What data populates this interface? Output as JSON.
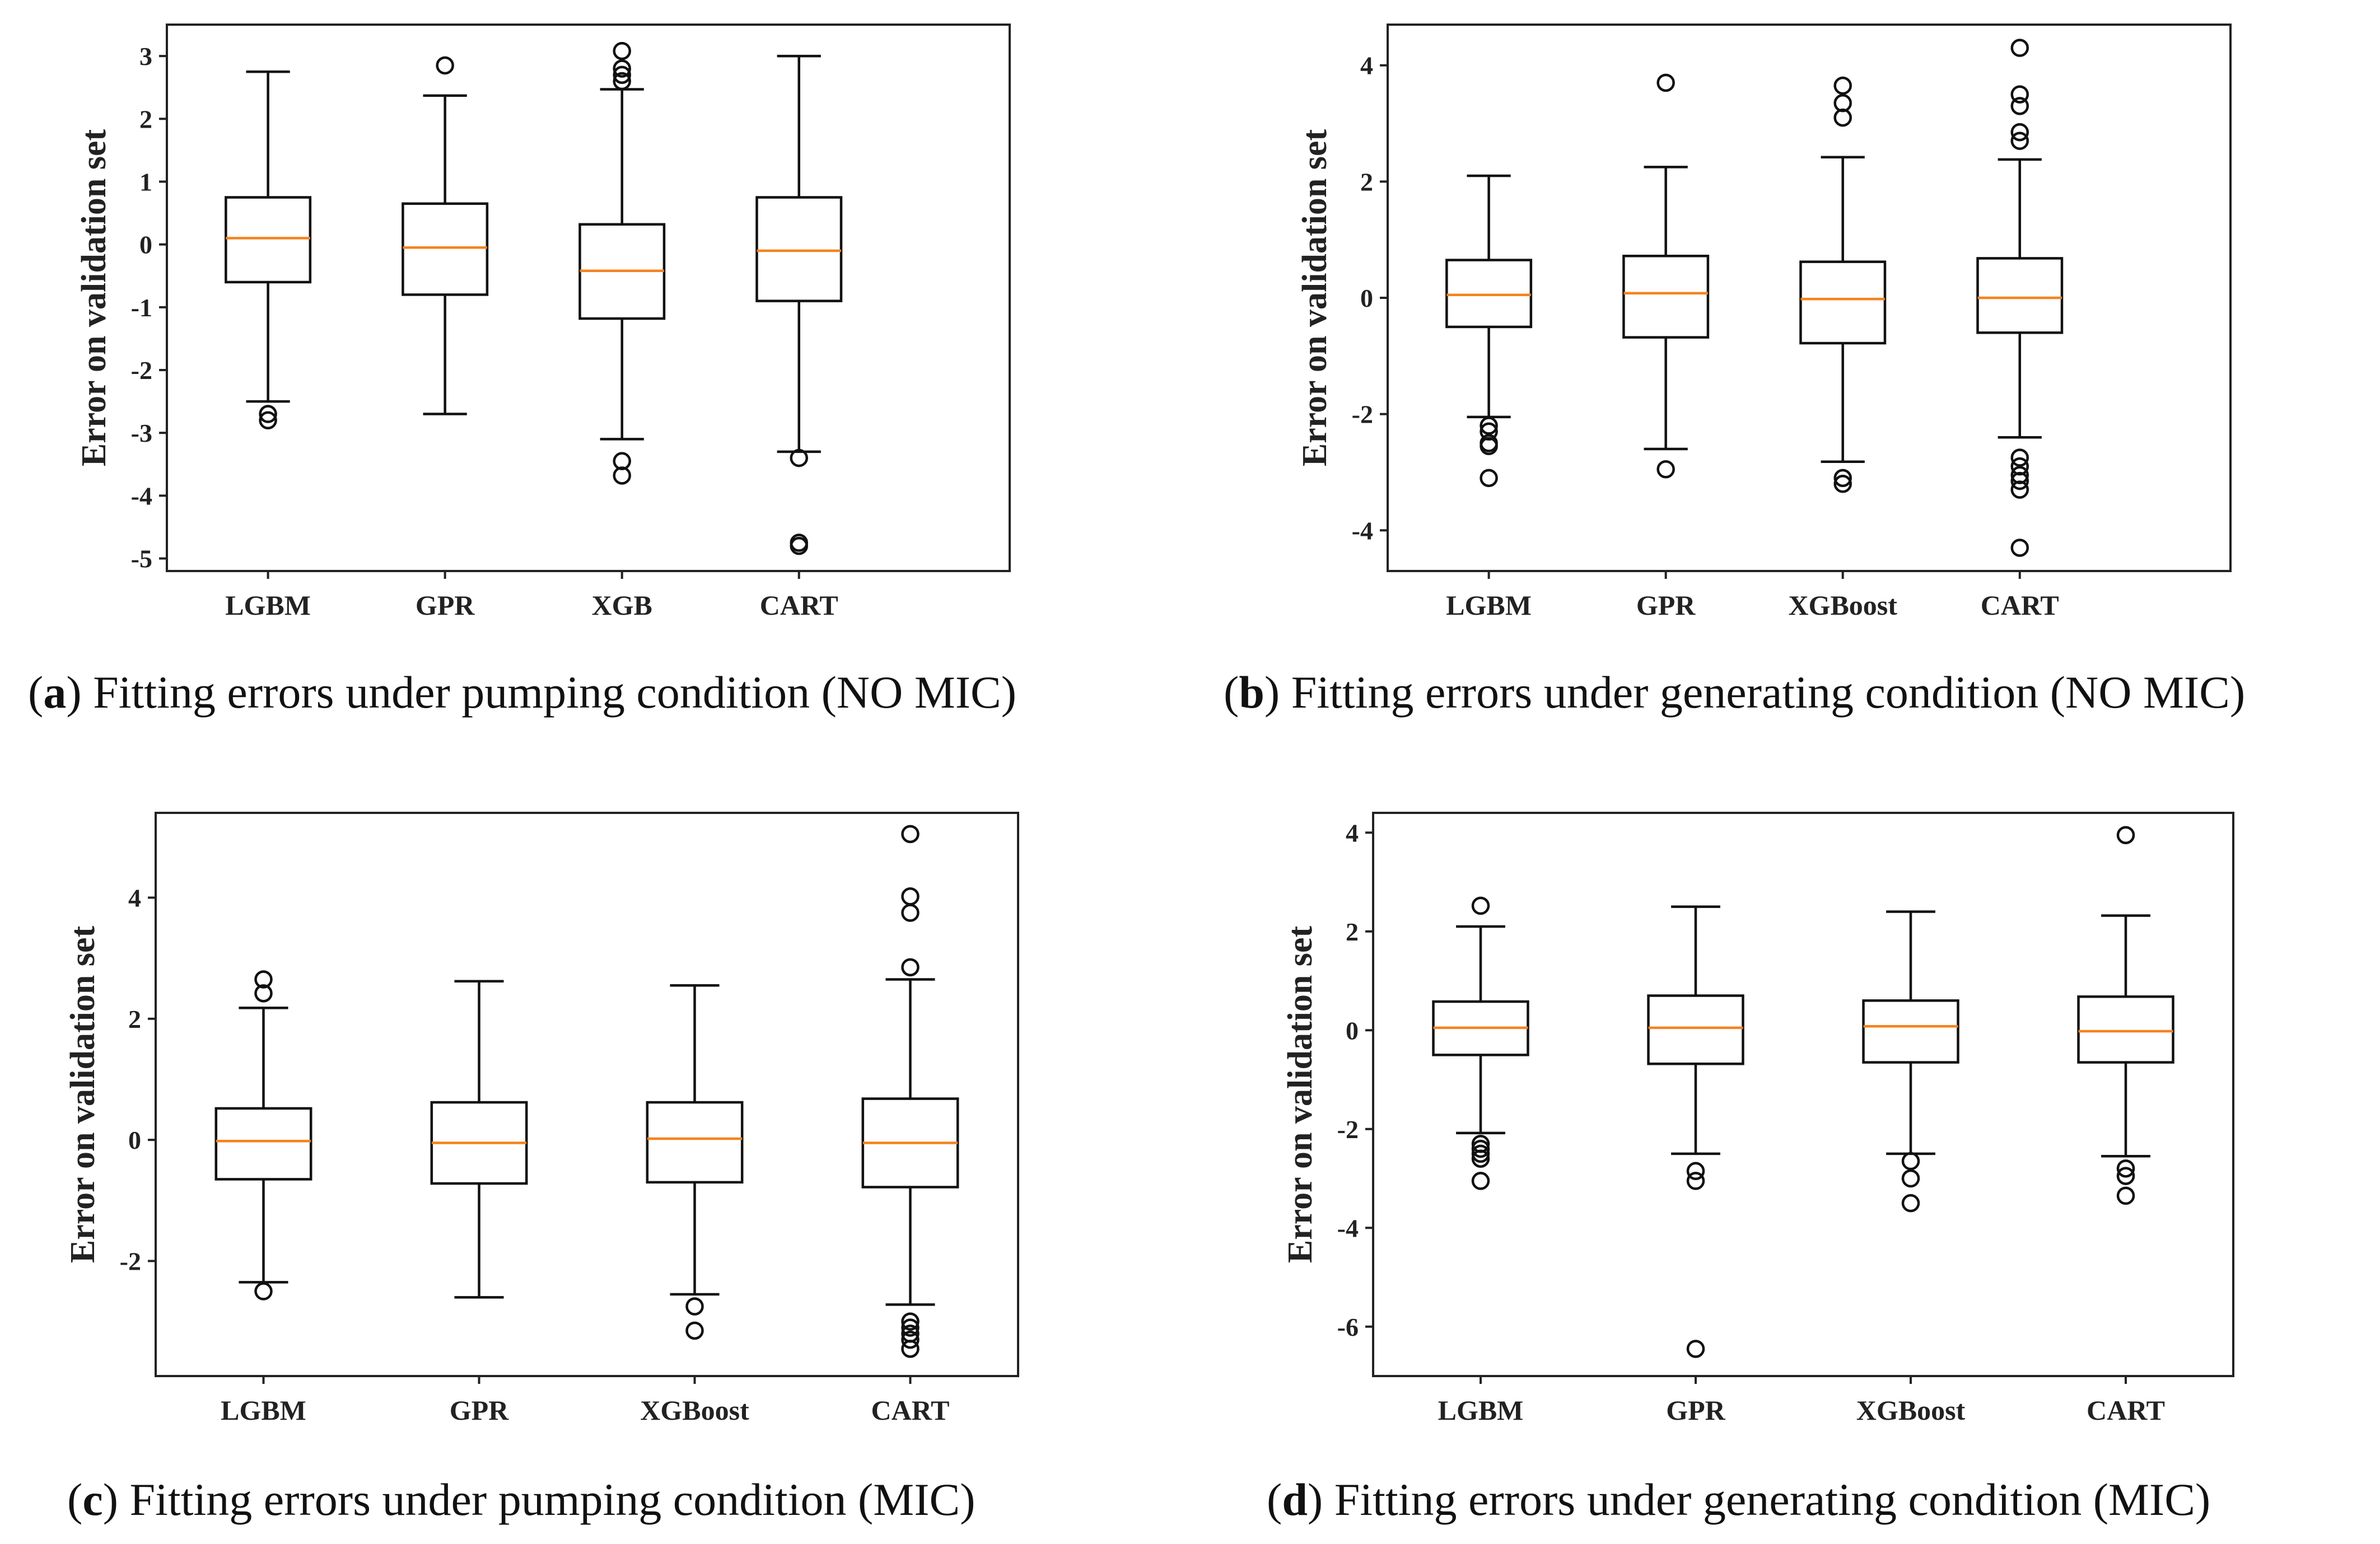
{
  "chart_data": [
    {
      "type": "box",
      "panel_tag": "a",
      "caption": "Fitting errors under pumping condition (NO MIC)",
      "ylabel": "Error on validation set",
      "xlabel": "",
      "ylim": [
        -5.2,
        3.5
      ],
      "yticks": [
        3,
        2,
        1,
        0,
        -1,
        -2,
        -3,
        -4,
        -5
      ],
      "categories": [
        "LGBM",
        "GPR",
        "XGB",
        "CART"
      ],
      "boxes": [
        {
          "q1": -0.6,
          "median": 0.1,
          "q3": 0.75,
          "whislo": -2.5,
          "whishi": 2.75,
          "fliers": [
            -2.7,
            -2.8
          ]
        },
        {
          "q1": -0.8,
          "median": -0.05,
          "q3": 0.65,
          "whislo": -2.7,
          "whishi": 2.37,
          "fliers": [
            2.85
          ]
        },
        {
          "q1": -1.18,
          "median": -0.42,
          "q3": 0.32,
          "whislo": -3.1,
          "whishi": 2.47,
          "fliers": [
            2.6,
            2.7,
            2.8,
            3.08,
            -3.45,
            -3.68
          ]
        },
        {
          "q1": -0.9,
          "median": -0.1,
          "q3": 0.75,
          "whislo": -3.3,
          "whishi": 3.0,
          "fliers": [
            -3.4,
            -4.75,
            -4.8
          ]
        }
      ]
    },
    {
      "type": "box",
      "panel_tag": "b",
      "caption": "Fitting errors under generating condition (NO MIC)",
      "ylabel": "Error on validation set",
      "xlabel": "",
      "ylim": [
        -4.7,
        4.7
      ],
      "yticks": [
        4,
        2,
        0,
        -2,
        -4
      ],
      "categories": [
        "LGBM",
        "GPR",
        "XGBoost",
        "CART"
      ],
      "boxes": [
        {
          "q1": -0.5,
          "median": 0.05,
          "q3": 0.65,
          "whislo": -2.05,
          "whishi": 2.1,
          "fliers": [
            -2.2,
            -2.3,
            -2.5,
            -2.55,
            -3.1
          ]
        },
        {
          "q1": -0.68,
          "median": 0.08,
          "q3": 0.72,
          "whislo": -2.6,
          "whishi": 2.25,
          "fliers": [
            3.7,
            -2.95
          ]
        },
        {
          "q1": -0.78,
          "median": -0.02,
          "q3": 0.62,
          "whislo": -2.82,
          "whishi": 2.42,
          "fliers": [
            3.1,
            3.35,
            3.65,
            -3.1,
            -3.2
          ]
        },
        {
          "q1": -0.6,
          "median": 0.0,
          "q3": 0.68,
          "whislo": -2.4,
          "whishi": 2.38,
          "fliers": [
            2.7,
            2.85,
            3.3,
            3.5,
            4.3,
            -2.75,
            -2.9,
            -3.05,
            -3.15,
            -3.3,
            -4.3
          ]
        }
      ]
    },
    {
      "type": "box",
      "panel_tag": "c",
      "caption": "Fitting errors under pumping condition (MIC)",
      "ylabel": "Error on validation set",
      "xlabel": "",
      "ylim": [
        -3.9,
        5.4
      ],
      "yticks": [
        4,
        2,
        0,
        -2
      ],
      "categories": [
        "LGBM",
        "GPR",
        "XGBoost",
        "CART"
      ],
      "boxes": [
        {
          "q1": -0.65,
          "median": -0.02,
          "q3": 0.52,
          "whislo": -2.35,
          "whishi": 2.18,
          "fliers": [
            2.42,
            2.65,
            -2.5
          ]
        },
        {
          "q1": -0.72,
          "median": -0.05,
          "q3": 0.62,
          "whislo": -2.6,
          "whishi": 2.62,
          "fliers": []
        },
        {
          "q1": -0.7,
          "median": 0.02,
          "q3": 0.62,
          "whislo": -2.55,
          "whishi": 2.55,
          "fliers": [
            -2.75,
            -3.15
          ]
        },
        {
          "q1": -0.78,
          "median": -0.05,
          "q3": 0.68,
          "whislo": -2.72,
          "whishi": 2.65,
          "fliers": [
            2.85,
            3.75,
            4.02,
            5.05,
            -3.0,
            -3.1,
            -3.2,
            -3.3,
            -3.45
          ]
        }
      ]
    },
    {
      "type": "box",
      "panel_tag": "d",
      "caption": "Fitting errors under generating condition (MIC)",
      "ylabel": "Error on validation set",
      "xlabel": "",
      "ylim": [
        -7.0,
        4.4
      ],
      "yticks": [
        4,
        2,
        0,
        -2,
        -4,
        -6
      ],
      "categories": [
        "LGBM",
        "GPR",
        "XGBoost",
        "CART"
      ],
      "boxes": [
        {
          "q1": -0.5,
          "median": 0.05,
          "q3": 0.58,
          "whislo": -2.08,
          "whishi": 2.1,
          "fliers": [
            2.52,
            -2.3,
            -2.4,
            -2.5,
            -2.6,
            -3.05
          ]
        },
        {
          "q1": -0.68,
          "median": 0.05,
          "q3": 0.7,
          "whislo": -2.5,
          "whishi": 2.5,
          "fliers": [
            -2.85,
            -3.05,
            -6.45
          ]
        },
        {
          "q1": -0.65,
          "median": 0.08,
          "q3": 0.6,
          "whislo": -2.5,
          "whishi": 2.4,
          "fliers": [
            -2.65,
            -3.0,
            -3.5
          ]
        },
        {
          "q1": -0.65,
          "median": -0.02,
          "q3": 0.68,
          "whislo": -2.55,
          "whishi": 2.32,
          "fliers": [
            3.95,
            -2.8,
            -2.95,
            -3.35
          ]
        }
      ]
    }
  ],
  "colors": {
    "median": "#f5821f",
    "box": "#111111",
    "background": "#ffffff"
  }
}
